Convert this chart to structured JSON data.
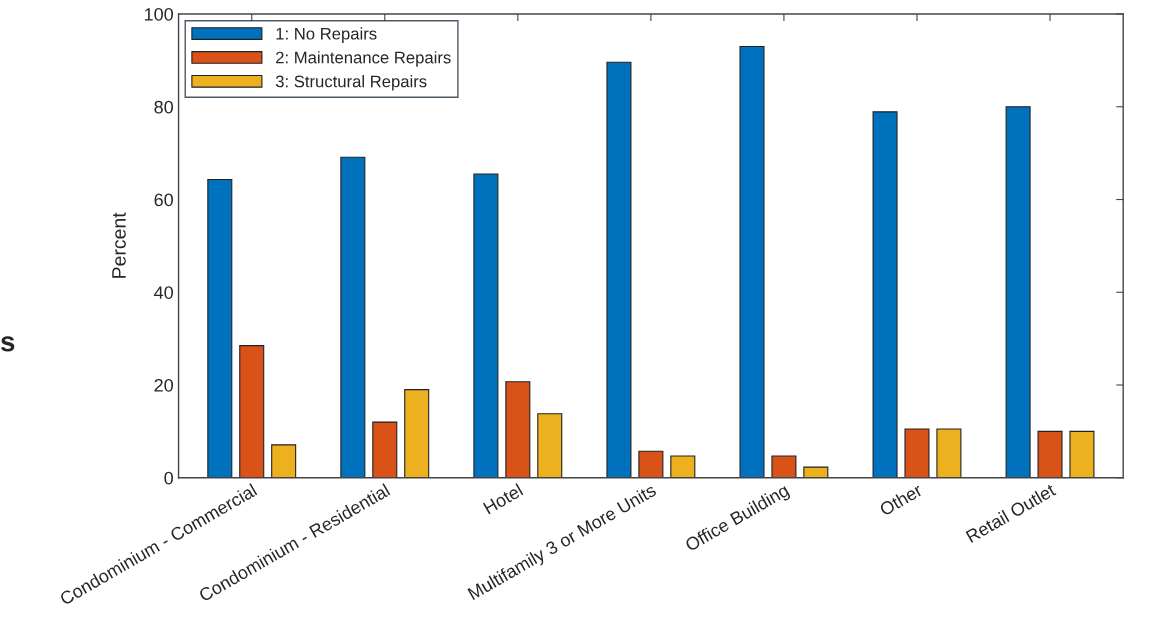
{
  "chart_data": {
    "type": "bar",
    "ylabel": "Percent",
    "categories": [
      "Condominium - Commercial",
      "Condominium - Residential",
      "Hotel",
      "Multifamily 3 or More Units",
      "Office Building",
      "Other",
      "Retail Outlet"
    ],
    "series": [
      {
        "name": "1: No Repairs",
        "color": "#0072bd",
        "values": [
          64.3,
          69.1,
          65.5,
          89.6,
          93.0,
          78.9,
          80.0
        ]
      },
      {
        "name": "2: Maintenance Repairs",
        "color": "#d95319",
        "values": [
          28.5,
          12.0,
          20.7,
          5.7,
          4.7,
          10.5,
          10.0
        ]
      },
      {
        "name": "3: Structural Repairs",
        "color": "#edb120",
        "values": [
          7.1,
          19.0,
          13.8,
          4.7,
          2.3,
          10.5,
          10.0
        ]
      }
    ],
    "ylim": [
      0,
      100
    ],
    "yticks": [
      0,
      20,
      40,
      60,
      80,
      100
    ],
    "grid": false,
    "legend": "top left",
    "annotations": [
      "s"
    ]
  }
}
